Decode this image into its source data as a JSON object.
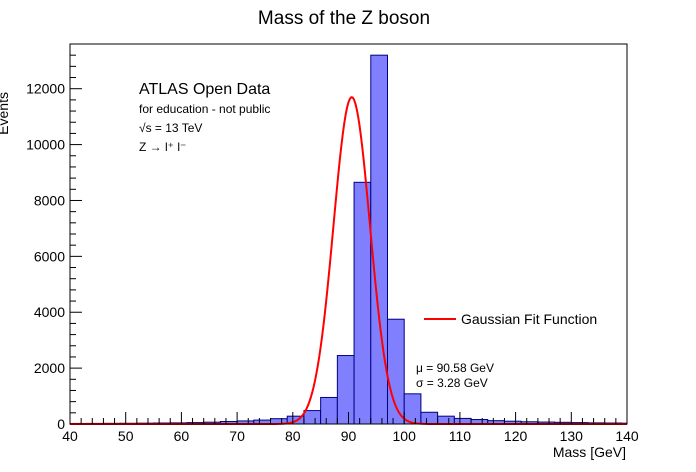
{
  "chart_data": {
    "type": "bar",
    "title": "Mass of the Z boson",
    "xlabel": "Mass [GeV]",
    "ylabel": "Events",
    "xlim": [
      40,
      140
    ],
    "ylim": [
      0,
      13600
    ],
    "x_ticks": [
      40,
      50,
      60,
      70,
      80,
      90,
      100,
      110,
      120,
      130,
      140
    ],
    "y_ticks": [
      0,
      2000,
      4000,
      6000,
      8000,
      10000,
      12000
    ],
    "bin_width": 3,
    "bin_edges_start": 40,
    "values": [
      20,
      22,
      24,
      26,
      30,
      35,
      40,
      50,
      65,
      90,
      110,
      140,
      190,
      280,
      480,
      950,
      2450,
      8650,
      13200,
      3750,
      1080,
      420,
      280,
      200,
      160,
      120,
      100,
      80,
      70,
      60,
      50,
      40,
      35,
      30
    ],
    "hist_color": "#8080ff",
    "fit": {
      "label": "Gaussian Fit Function",
      "mu": 90.58,
      "sigma": 3.28,
      "amplitude": 11700,
      "x_range": [
        40,
        140
      ],
      "color": "#ff0000"
    },
    "annotations": {
      "experiment": "ATLAS Open Data",
      "note": "for education - not public",
      "energy": "√s = 13 TeV",
      "process": "Z → l⁺ l⁻",
      "mu_text": "μ = 90.58 GeV",
      "sigma_text": "σ = 3.28 GeV"
    },
    "legend": {
      "entry": "Gaussian Fit Function",
      "placement": "center-right"
    },
    "grid": false
  }
}
